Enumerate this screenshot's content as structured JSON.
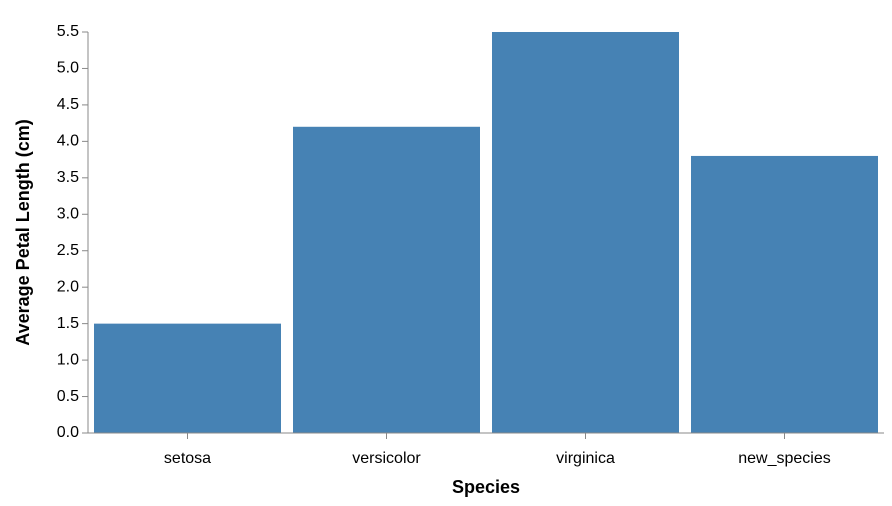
{
  "chart_data": {
    "type": "bar",
    "categories": [
      "setosa",
      "versicolor",
      "virginica",
      "new_species"
    ],
    "values": [
      1.5,
      4.2,
      5.5,
      3.8
    ],
    "xlabel": "Species",
    "ylabel": "Average Petal Length (cm)",
    "ylim": [
      0,
      5.5
    ],
    "yticks": [
      "0.0",
      "0.5",
      "1.0",
      "1.5",
      "2.0",
      "2.5",
      "3.0",
      "3.5",
      "4.0",
      "4.5",
      "5.0",
      "5.5"
    ],
    "grid": false,
    "legend": "none",
    "bar_color": "#4682b4",
    "axis_color": "#888888"
  }
}
